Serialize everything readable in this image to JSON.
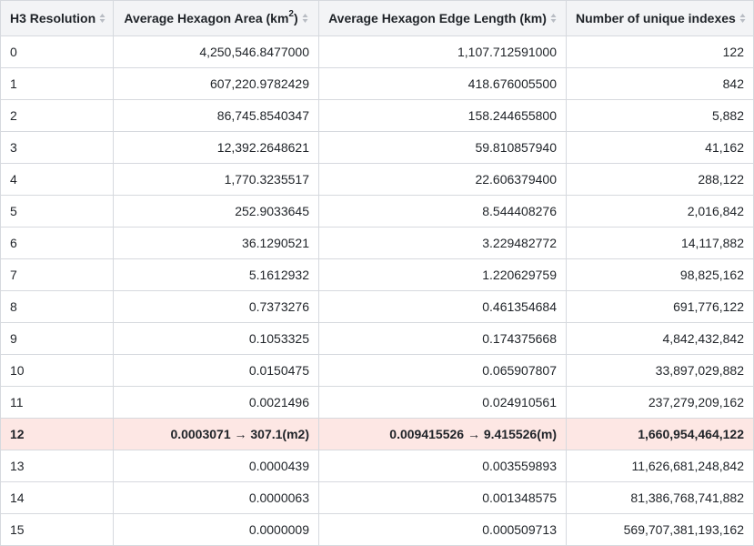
{
  "table": {
    "headers": {
      "resolution": "H3 Resolution",
      "area_prefix": "Average Hexagon Area (km",
      "area_sup": "2",
      "area_suffix": ")",
      "edge": "Average Hexagon Edge Length (km)",
      "count": "Number of unique indexes"
    },
    "rows": [
      {
        "res": "0",
        "area": "4,250,546.8477000",
        "edge": "1,107.712591000",
        "count": "122"
      },
      {
        "res": "1",
        "area": "607,220.9782429",
        "edge": "418.676005500",
        "count": "842"
      },
      {
        "res": "2",
        "area": "86,745.8540347",
        "edge": "158.244655800",
        "count": "5,882"
      },
      {
        "res": "3",
        "area": "12,392.2648621",
        "edge": "59.810857940",
        "count": "41,162"
      },
      {
        "res": "4",
        "area": "1,770.3235517",
        "edge": "22.606379400",
        "count": "288,122"
      },
      {
        "res": "5",
        "area": "252.9033645",
        "edge": "8.544408276",
        "count": "2,016,842"
      },
      {
        "res": "6",
        "area": "36.1290521",
        "edge": "3.229482772",
        "count": "14,117,882"
      },
      {
        "res": "7",
        "area": "5.1612932",
        "edge": "1.220629759",
        "count": "98,825,162"
      },
      {
        "res": "8",
        "area": "0.7373276",
        "edge": "0.461354684",
        "count": "691,776,122"
      },
      {
        "res": "9",
        "area": "0.1053325",
        "edge": "0.174375668",
        "count": "4,842,432,842"
      },
      {
        "res": "10",
        "area": "0.0150475",
        "edge": "0.065907807",
        "count": "33,897,029,882"
      },
      {
        "res": "11",
        "area": "0.0021496",
        "edge": "0.024910561",
        "count": "237,279,209,162"
      },
      {
        "res": "12",
        "area": "0.0003071 → 307.1(m2)",
        "edge": "0.009415526 → 9.415526(m)",
        "count": "1,660,954,464,122"
      },
      {
        "res": "13",
        "area": "0.0000439",
        "edge": "0.003559893",
        "count": "11,626,681,248,842"
      },
      {
        "res": "14",
        "area": "0.0000063",
        "edge": "0.001348575",
        "count": "81,386,768,741,882"
      },
      {
        "res": "15",
        "area": "0.0000009",
        "edge": "0.000509713",
        "count": "569,707,381,193,162"
      }
    ],
    "highlight_row": "12",
    "colors": {
      "header_bg": "#f3f4f6",
      "highlight_bg": "#fde7e4",
      "border": "#d6d9de"
    },
    "sort_icon": "sort-arrows-icon"
  }
}
